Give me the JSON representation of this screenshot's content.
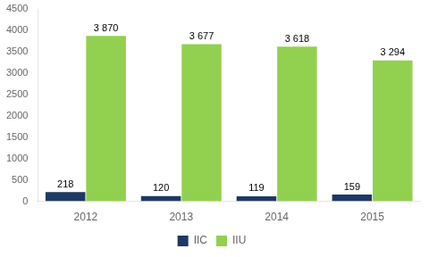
{
  "chart_data": {
    "type": "bar",
    "categories": [
      "2012",
      "2013",
      "2014",
      "2015"
    ],
    "series": [
      {
        "name": "IIC",
        "color": "#1F3864",
        "values": [
          218,
          120,
          119,
          159
        ]
      },
      {
        "name": "IIU",
        "color": "#92D050",
        "values": [
          3870,
          3677,
          3618,
          3294
        ],
        "value_labels": [
          "3 870",
          "3 677",
          "3 618",
          "3 294"
        ]
      }
    ],
    "ylim": [
      0,
      4500
    ],
    "yticks": [
      0,
      500,
      1000,
      1500,
      2000,
      2500,
      3000,
      3500,
      4000,
      4500
    ],
    "grid": false,
    "legend": "bottom",
    "data_labels": true
  }
}
